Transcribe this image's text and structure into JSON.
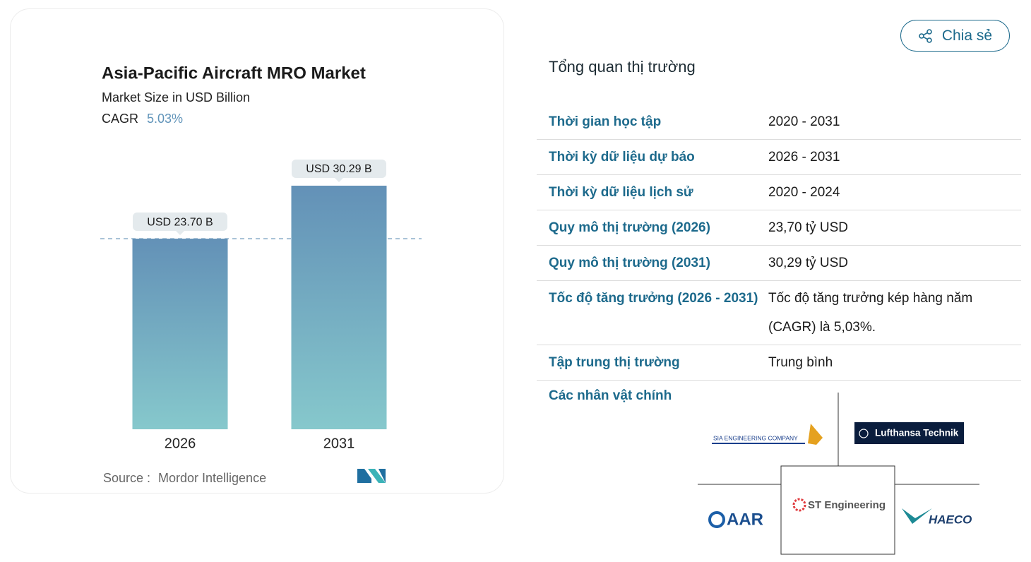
{
  "share": "Chia sẻ",
  "chart_data": {
    "type": "bar",
    "title": "Asia-Pacific Aircraft MRO Market",
    "subtitle": "Market Size in USD Billion",
    "cagr_label": "CAGR",
    "cagr_value": "5.03%",
    "categories": [
      "2026",
      "2031"
    ],
    "values": [
      23.7,
      30.29
    ],
    "value_labels": [
      "USD 23.70 B",
      "USD 30.29 B"
    ],
    "color": "#6391b7",
    "color_bottom": "#86c8cc",
    "reference_line": true,
    "source_label": "Source :",
    "source": "Mordor Intelligence"
  },
  "overview": {
    "title": "Tổng quan thị trường",
    "rows": [
      [
        "Thời gian học tập",
        "2020 - 2031"
      ],
      [
        "Thời kỳ dữ liệu dự báo",
        "2026 - 2031"
      ],
      [
        "Thời kỳ dữ liệu lịch sử",
        "2020 - 2024"
      ],
      [
        "Quy mô thị trường (2026)",
        "23,70 tỷ USD"
      ],
      [
        "Quy mô thị trường (2031)",
        "30,29 tỷ USD"
      ],
      [
        "Tốc độ tăng trưởng (2026 - 2031)",
        "Tốc độ tăng trưởng kép hàng năm (CAGR) là 5,03%."
      ],
      [
        "Tập trung thị trường",
        "Trung bình"
      ]
    ]
  },
  "key_players": {
    "title": "Các nhân vật chính",
    "logos": [
      "SIA ENGINEERING COMPANY",
      "Lufthansa Technik",
      "ST Engineering",
      "AAR",
      "HAECO"
    ]
  }
}
